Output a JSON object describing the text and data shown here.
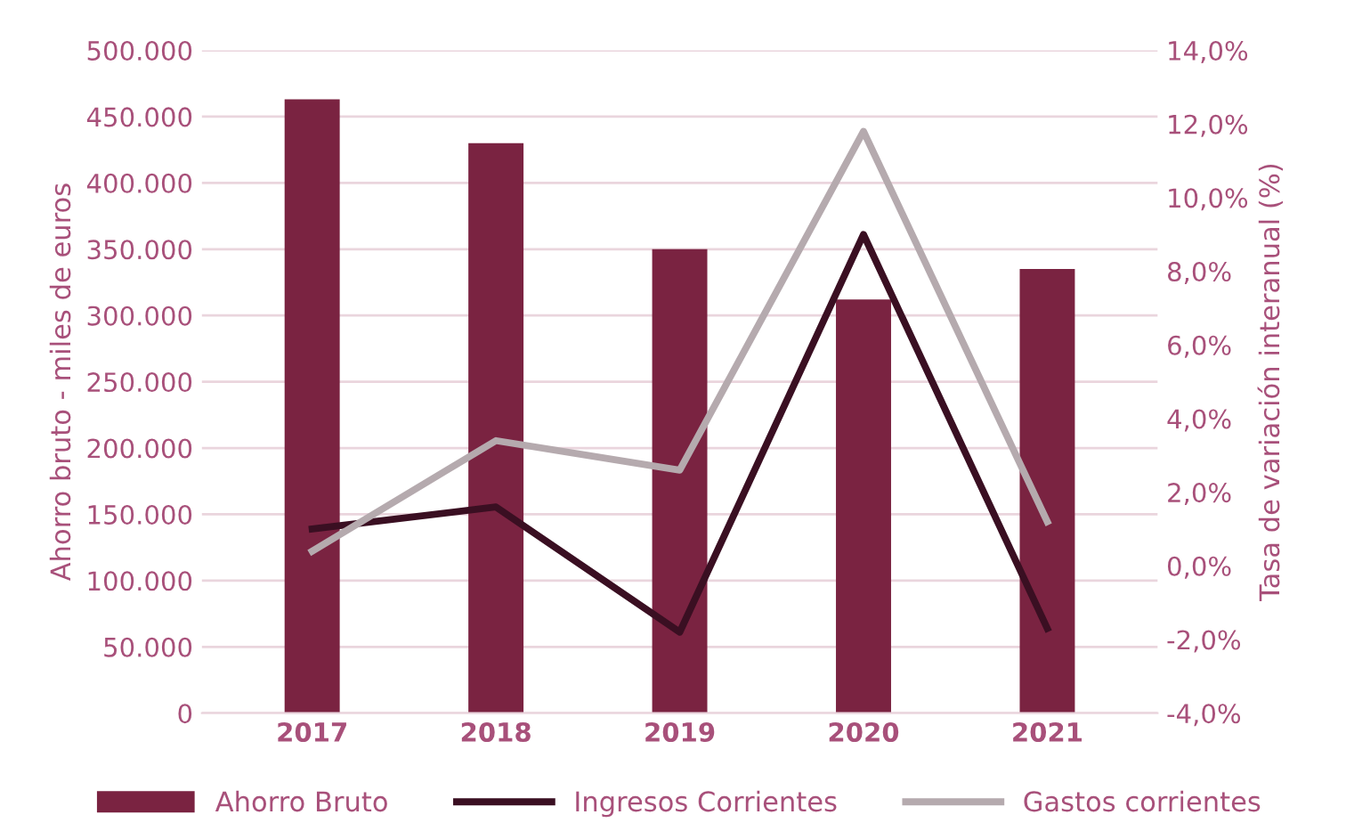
{
  "chart_data": {
    "type": "bar",
    "categories": [
      "2017",
      "2018",
      "2019",
      "2020",
      "2021"
    ],
    "ylabel": "Ahorro bruto - miles de euros",
    "y2label": "Tasa de variación interanual (%)",
    "series": [
      {
        "name": "Ahorro Bruto",
        "color": "#7a2341",
        "values": [
          463000,
          430000,
          350000,
          312000,
          335000
        ]
      },
      {
        "name": "Ingresos Corrientes",
        "type": "line",
        "axis": "y2",
        "color": "#3a0f22",
        "values": [
          1.0,
          1.6,
          -1.8,
          9.0,
          -1.7
        ]
      },
      {
        "name": "Gastos corrientes",
        "type": "line",
        "axis": "y2",
        "color": "#b5aaae",
        "values": [
          0.4,
          3.4,
          2.6,
          11.8,
          1.2
        ]
      }
    ],
    "ylim": [
      0,
      500000
    ],
    "yticks": [
      {
        "value": 0,
        "label": "0"
      },
      {
        "value": 50000,
        "label": "50.000"
      },
      {
        "value": 100000,
        "label": "100.000"
      },
      {
        "value": 150000,
        "label": "150.000"
      },
      {
        "value": 200000,
        "label": "200.000"
      },
      {
        "value": 250000,
        "label": "250.000"
      },
      {
        "value": 300000,
        "label": "300.000"
      },
      {
        "value": 350000,
        "label": "350.000"
      },
      {
        "value": 400000,
        "label": "400.000"
      },
      {
        "value": 450000,
        "label": "450.000"
      },
      {
        "value": 500000,
        "label": "500.000"
      }
    ],
    "y2lim": [
      -4,
      14
    ],
    "y2ticks": [
      {
        "value": -4,
        "label": "-4,0%"
      },
      {
        "value": -2,
        "label": "-2,0%"
      },
      {
        "value": 0,
        "label": "0,0%"
      },
      {
        "value": 2,
        "label": "2,0%"
      },
      {
        "value": 4,
        "label": "4,0%"
      },
      {
        "value": 6,
        "label": "6,0%"
      },
      {
        "value": 8,
        "label": "8,0%"
      },
      {
        "value": 10,
        "label": "10,0%"
      },
      {
        "value": 12,
        "label": "12,0%"
      },
      {
        "value": 14,
        "label": "14,0%"
      }
    ],
    "grid": "y",
    "legend": "bottom",
    "marker": "none",
    "line_style": "solid"
  }
}
